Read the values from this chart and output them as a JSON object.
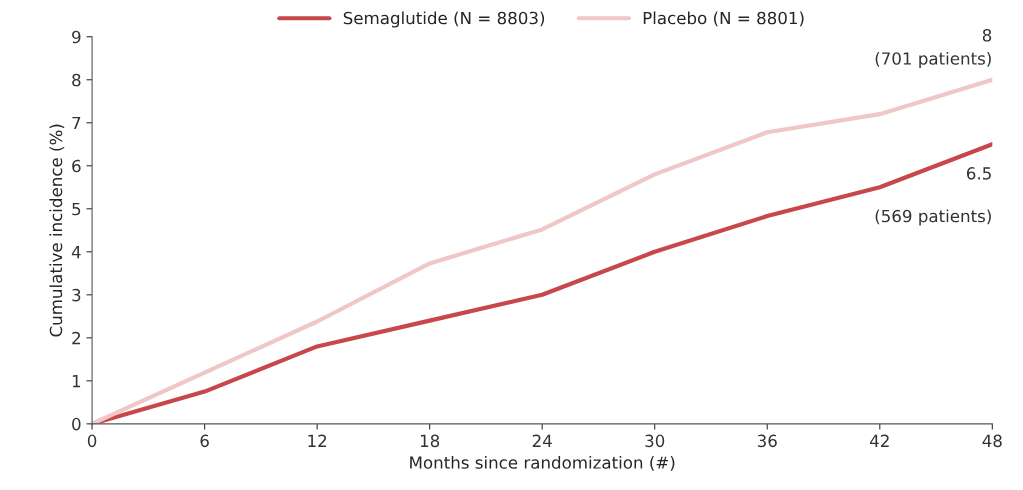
{
  "chart_data": {
    "type": "line",
    "x": [
      0,
      6,
      12,
      18,
      24,
      30,
      36,
      42,
      48
    ],
    "series": [
      {
        "name": "Semaglutide (N = 8803)",
        "color": "#c8474a",
        "values": [
          0,
          0.75,
          1.8,
          2.4,
          3.0,
          4.0,
          4.83,
          5.5,
          6.5
        ]
      },
      {
        "name": "Placebo (N = 8801)",
        "color": "#f0c6c6",
        "values": [
          0,
          1.19,
          2.38,
          3.73,
          4.52,
          5.8,
          6.78,
          7.2,
          8.0
        ]
      }
    ],
    "xlabel": "Months since randomization (#)",
    "ylabel": "Cumulative incidence (%)",
    "xlim": [
      0,
      48
    ],
    "xticks": [
      0,
      6,
      12,
      18,
      24,
      30,
      36,
      42,
      48
    ],
    "ylim": [
      0,
      9
    ],
    "yticks": [
      0,
      1,
      2,
      3,
      4,
      5,
      6,
      7,
      8,
      9
    ],
    "grid": false,
    "legend": "top",
    "marker": "none",
    "line_style": "solid",
    "annotations": [
      "8",
      "(701 patients)",
      {
        "text": "6.5",
        "x": 48,
        "y": 6.5
      },
      "(569 patients)"
    ]
  }
}
